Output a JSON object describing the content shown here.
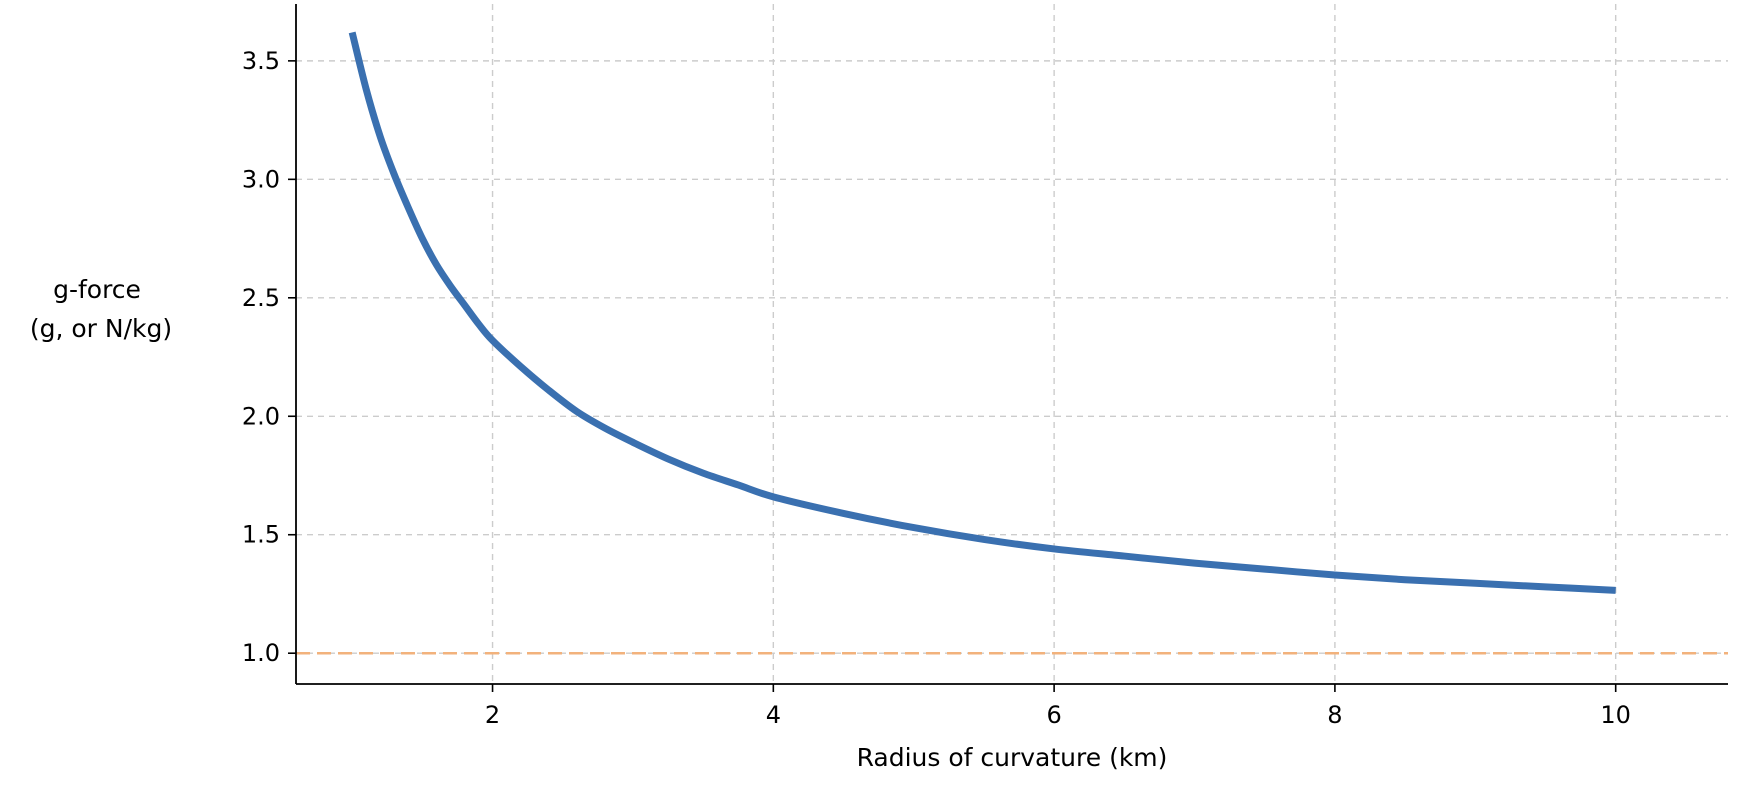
{
  "chart_data": {
    "type": "line",
    "title": "",
    "xlabel": "Radius of curvature (km)",
    "ylabel_lines": [
      "g-force",
      "(g, or N/kg)"
    ],
    "xlim": [
      0.6,
      10.8
    ],
    "ylim": [
      0.87,
      3.74
    ],
    "x_ticks": [
      2,
      4,
      6,
      8,
      10
    ],
    "x_tick_labels": [
      "2",
      "4",
      "6",
      "8",
      "10"
    ],
    "y_ticks": [
      1.0,
      1.5,
      2.0,
      2.5,
      3.0,
      3.5
    ],
    "y_tick_labels": [
      "1.0",
      "1.5",
      "2.0",
      "2.5",
      "3.0",
      "3.5"
    ],
    "grid": true,
    "series": [
      {
        "color": "#3a70b0",
        "x": [
          1.0,
          1.1,
          1.2,
          1.3,
          1.4,
          1.5,
          1.6,
          1.7,
          1.8,
          1.9,
          2.0,
          2.2,
          2.4,
          2.6,
          2.8,
          3.0,
          3.25,
          3.5,
          3.75,
          4.0,
          4.5,
          5.0,
          5.5,
          6.0,
          6.5,
          7.0,
          7.5,
          8.0,
          8.5,
          9.0,
          9.5,
          10.0
        ],
        "y": [
          3.62,
          3.38,
          3.18,
          3.02,
          2.88,
          2.75,
          2.64,
          2.55,
          2.47,
          2.39,
          2.32,
          2.21,
          2.11,
          2.02,
          1.95,
          1.89,
          1.82,
          1.76,
          1.71,
          1.66,
          1.59,
          1.53,
          1.48,
          1.44,
          1.41,
          1.38,
          1.355,
          1.33,
          1.31,
          1.295,
          1.28,
          1.265
        ]
      }
    ],
    "reference_line": {
      "y": 1.0,
      "color": "#f2b27c",
      "style": "dashed"
    },
    "colors": {
      "grid": "#cccccc",
      "axis": "#000000"
    }
  }
}
